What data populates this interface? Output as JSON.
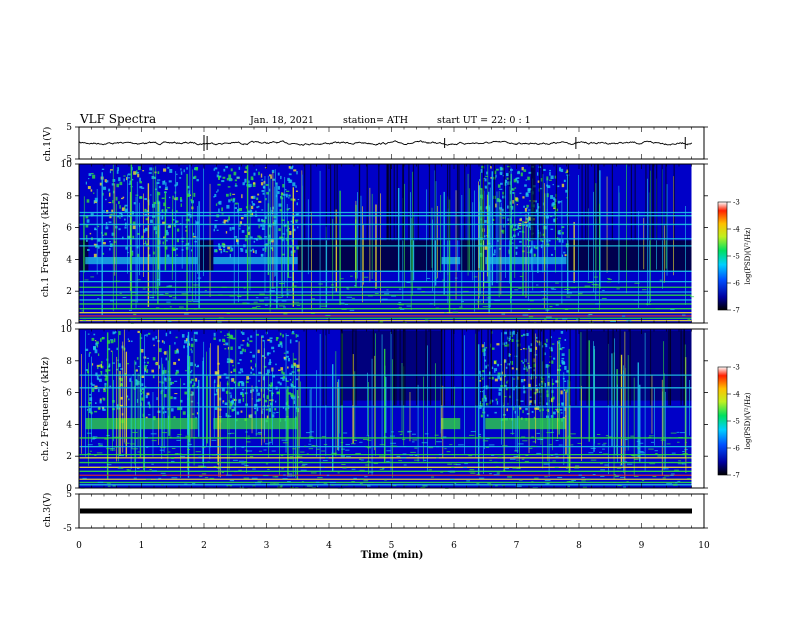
{
  "header": {
    "title": "VLF Spectra",
    "date": "Jan. 18, 2021",
    "station": "station= ATH",
    "start": "start  UT  =  22: 0  : 1"
  },
  "colors": {
    "background": "#000040",
    "noise_low": "#0000c8",
    "band_cyan": "#20c8e8",
    "band_green": "#30e040",
    "band_yellow": "#f0e030",
    "band_red": "#e03030",
    "trace": "#000000"
  },
  "chart_data": [
    {
      "type": "line",
      "name": "ch1-waveform",
      "ylabel": "ch.1(V)",
      "ylim": [
        -5,
        5
      ],
      "yticks": [
        "5",
        "-5"
      ],
      "mean_value": 0,
      "xlim": [
        0,
        10
      ]
    },
    {
      "type": "heatmap",
      "name": "ch1-spectrogram",
      "ylabel": "ch.1 Frequency (kHz)",
      "ylim": [
        0,
        10
      ],
      "yticks": [
        "0",
        "2",
        "4",
        "6",
        "8",
        "10"
      ],
      "colorbar": {
        "label": "log(PSD)(V²/Hz)",
        "range": [
          -7,
          -3
        ],
        "ticks": [
          "-3",
          "-4",
          "-5",
          "-6",
          "-7"
        ]
      }
    },
    {
      "type": "heatmap",
      "name": "ch2-spectrogram",
      "ylabel": "ch.2 Frequency (kHz)",
      "ylim": [
        0,
        10
      ],
      "yticks": [
        "0",
        "2",
        "4",
        "6",
        "8",
        "10"
      ],
      "colorbar": {
        "label": "log(PSD)(V²/Hz)",
        "range": [
          -7,
          -3
        ],
        "ticks": [
          "-3",
          "-4",
          "-5",
          "-6",
          "-7"
        ]
      }
    },
    {
      "type": "line",
      "name": "ch3-waveform",
      "ylabel": "ch.3(V)",
      "ylim": [
        -5,
        5
      ],
      "yticks": [
        "5",
        "-5"
      ],
      "mean_value": 0,
      "xlim": [
        0,
        10
      ]
    }
  ],
  "xaxis": {
    "label": "Time  (min)",
    "range": [
      0,
      10
    ],
    "ticks": [
      "0",
      "1",
      "2",
      "3",
      "4",
      "5",
      "6",
      "7",
      "8",
      "9",
      "10"
    ]
  }
}
